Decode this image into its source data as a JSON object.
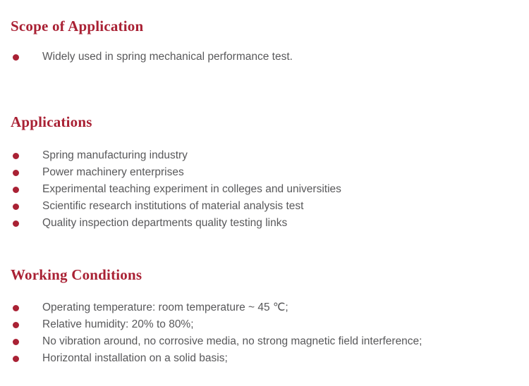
{
  "page": {
    "background_color": "#ffffff",
    "accent_color": "#a92134",
    "body_text_color": "#58585a"
  },
  "sections": [
    {
      "heading": "Scope of Application",
      "items": [
        "Widely used in spring mechanical performance test."
      ]
    },
    {
      "heading": "Applications",
      "items": [
        "Spring manufacturing industry",
        "Power machinery enterprises",
        "Experimental teaching experiment in colleges and universities",
        "Scientific research institutions of material analysis test",
        "Quality inspection departments quality testing links"
      ]
    },
    {
      "heading": "Working Conditions",
      "items": [
        "Operating temperature: room temperature ~ 45 ℃;",
        "Relative humidity: 20% to 80%;",
        "No vibration around, no corrosive media, no strong magnetic field interference;",
        "Horizontal installation on a solid basis;"
      ]
    }
  ]
}
